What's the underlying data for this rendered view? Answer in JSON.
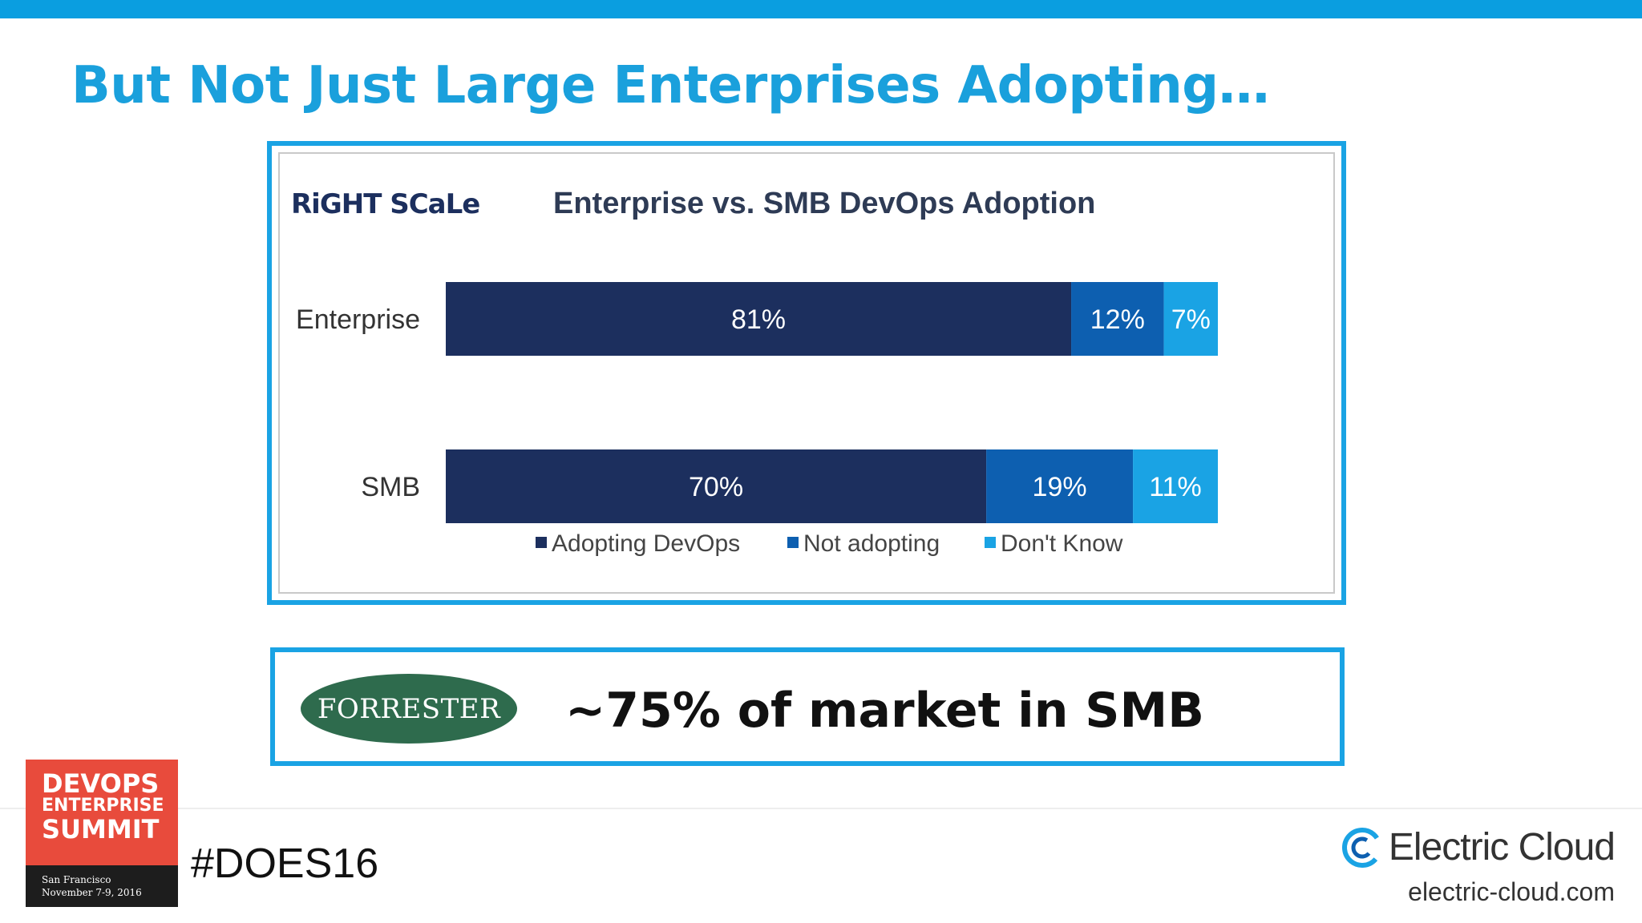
{
  "slide": {
    "title": "But Not Just Large Enterprises Adopting…",
    "accent_color": "#1aa0dc",
    "chart_logo": "RiGHT SCaLe",
    "callout_logo": "FORRESTER",
    "callout_text": "~75% of market in SMB",
    "badge": {
      "line1": "DEVOPS",
      "line2": "ENTERPRISE",
      "line3": "SUMMIT",
      "city": "San Francisco",
      "dates": "November 7-9, 2016"
    },
    "hashtag": "#DOES16",
    "brand_name": "Electric Cloud",
    "brand_url": "electric-cloud.com"
  },
  "chart_data": {
    "type": "bar",
    "orientation": "horizontal",
    "stacked": true,
    "title": "Enterprise vs. SMB DevOps Adoption",
    "categories": [
      "Enterprise",
      "SMB"
    ],
    "series": [
      {
        "name": "Adopting DevOps",
        "values": [
          81,
          70
        ],
        "labels": [
          "81%",
          "70%"
        ],
        "color": "#1c2f5e"
      },
      {
        "name": "Not adopting",
        "values": [
          12,
          19
        ],
        "labels": [
          "12%",
          "19%"
        ],
        "color": "#0d5fb0"
      },
      {
        "name": "Don't Know",
        "values": [
          7,
          11
        ],
        "labels": [
          "7%",
          "11%"
        ],
        "color": "#1aa3e4"
      }
    ],
    "xlim": [
      0,
      100
    ],
    "grid": false,
    "legend_position": "bottom"
  }
}
